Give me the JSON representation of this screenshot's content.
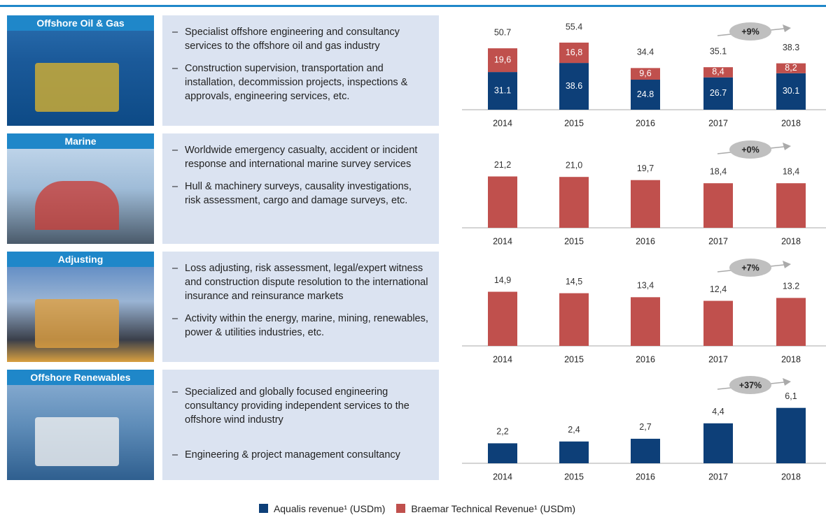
{
  "sections": [
    {
      "title": "Offshore Oil & Gas",
      "bullets": [
        "Specialist offshore engineering and consultancy services to the offshore oil and gas industry",
        "Construction supervision, transportation and installation, decommission projects, inspections & approvals, engineering services, etc."
      ]
    },
    {
      "title": "Marine",
      "bullets": [
        "Worldwide emergency casualty, accident or incident response and international marine survey services",
        "Hull & machinery surveys, causality investigations, risk assessment, cargo and damage surveys, etc."
      ]
    },
    {
      "title": "Adjusting",
      "bullets": [
        "Loss adjusting, risk assessment, legal/expert witness and construction dispute resolution to the international insurance and reinsurance markets",
        "Activity within the energy, marine, mining, renewables, power & utilities industries, etc."
      ]
    },
    {
      "title": "Offshore Renewables",
      "bullets": [
        "Specialized and globally focused engineering consultancy providing independent services to the offshore wind industry",
        "Engineering & project management consultancy"
      ]
    }
  ],
  "chart_data": [
    {
      "type": "stacked_bar",
      "categories": [
        "2014",
        "2015",
        "2016",
        "2017",
        "2018"
      ],
      "ylim": [
        0,
        60
      ],
      "annotation": "+9%",
      "series": [
        {
          "name": "Aqualis revenue¹ (USDm)",
          "color": "#0d3f78",
          "values": [
            31.1,
            38.6,
            24.8,
            26.7,
            30.1
          ]
        },
        {
          "name": "Braemar Technical Revenue¹ (USDm)",
          "color": "#c0504d",
          "values": [
            19.6,
            16.8,
            9.6,
            8.4,
            8.2
          ],
          "value_labels": [
            "19,6",
            "16,8",
            "9,6",
            "8,4",
            "8,2"
          ]
        }
      ],
      "totals": [
        50.7,
        55.4,
        34.4,
        35.1,
        38.3
      ]
    },
    {
      "type": "bar",
      "categories": [
        "2014",
        "2015",
        "2016",
        "2017",
        "2018"
      ],
      "ylim": [
        0,
        30
      ],
      "annotation": "+0%",
      "series": [
        {
          "name": "Braemar Technical Revenue¹ (USDm)",
          "color": "#c0504d",
          "values": [
            21.2,
            21.0,
            19.7,
            18.4,
            18.4
          ],
          "value_labels": [
            "21,2",
            "21,0",
            "19,7",
            "18,4",
            "18,4"
          ]
        }
      ]
    },
    {
      "type": "bar",
      "categories": [
        "2014",
        "2015",
        "2016",
        "2017",
        "2018"
      ],
      "ylim": [
        0,
        20
      ],
      "annotation": "+7%",
      "series": [
        {
          "name": "Braemar Technical Revenue¹ (USDm)",
          "color": "#c0504d",
          "values": [
            14.9,
            14.5,
            13.4,
            12.4,
            13.2
          ],
          "value_labels": [
            "14,9",
            "14,5",
            "13,4",
            "12,4",
            "13.2"
          ]
        }
      ]
    },
    {
      "type": "bar",
      "categories": [
        "2014",
        "2015",
        "2016",
        "2017",
        "2018"
      ],
      "ylim": [
        0,
        8
      ],
      "annotation": "+37%",
      "series": [
        {
          "name": "Aqualis revenue¹ (USDm)",
          "color": "#0d3f78",
          "values": [
            2.2,
            2.4,
            2.7,
            4.4,
            6.1
          ],
          "value_labels": [
            "2,2",
            "2,4",
            "2,7",
            "4,4",
            "6,1"
          ]
        }
      ]
    }
  ]
}
